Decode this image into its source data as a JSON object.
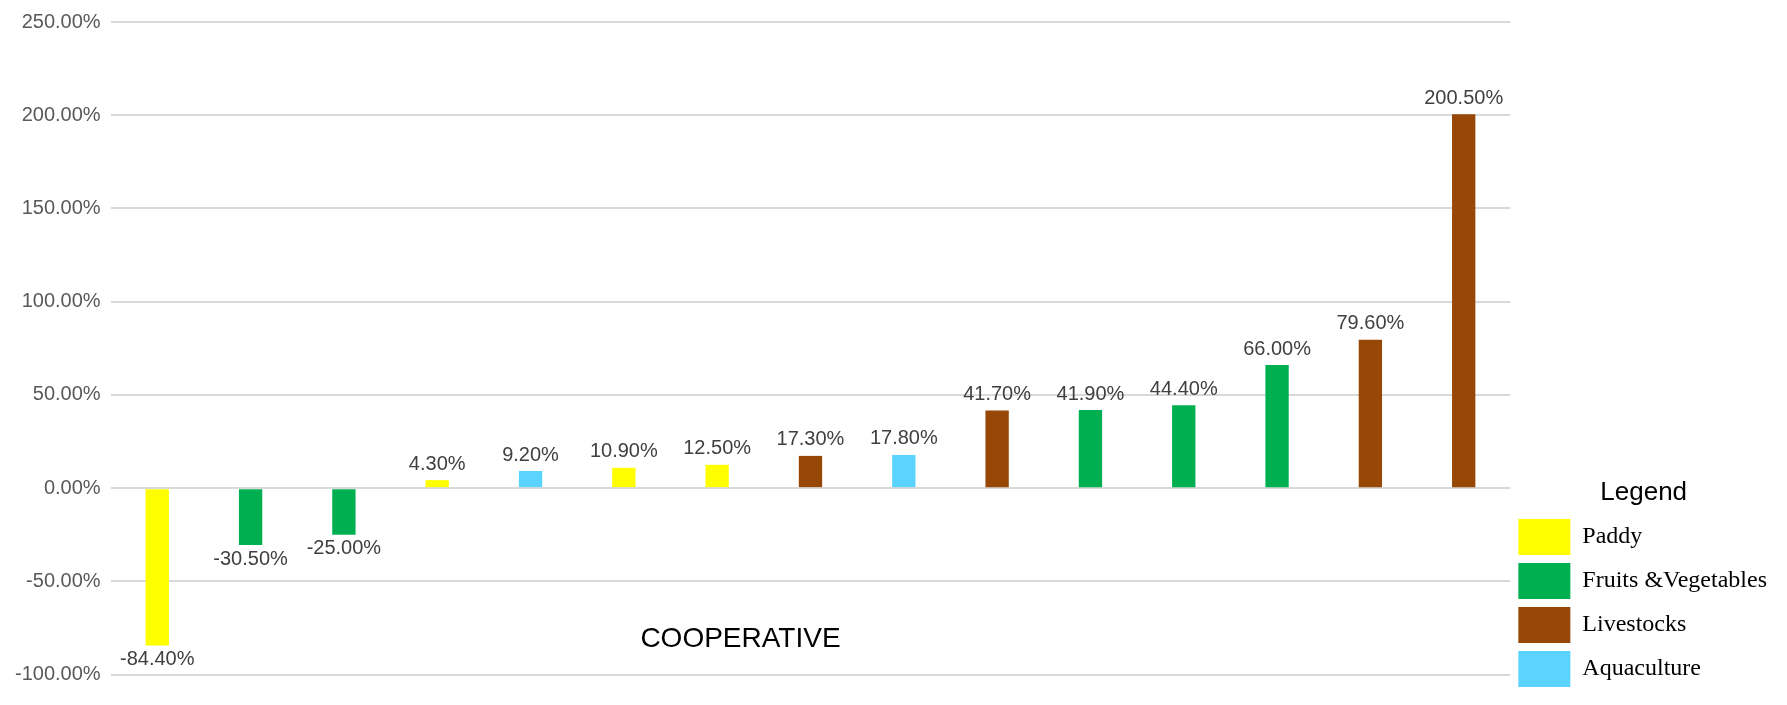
{
  "chart_data": {
    "type": "bar",
    "categories": [
      null,
      null,
      null,
      null,
      null,
      null,
      null,
      null,
      null,
      null,
      null,
      null,
      null,
      null,
      null
    ],
    "series": [
      {
        "name": "Paddy",
        "color": "#ffff00",
        "values": [
          -84.4,
          null,
          null,
          4.3,
          null,
          10.9,
          12.5,
          null,
          null,
          null,
          null,
          null,
          null,
          null,
          null
        ],
        "value_labels": [
          "-84.40%",
          null,
          null,
          "4.30%",
          null,
          "10.90%",
          "12.50%",
          null,
          null,
          null,
          null,
          null,
          null,
          null,
          null
        ]
      },
      {
        "name": "Fruits &Vegetables",
        "color": "#00b050",
        "values": [
          null,
          -30.5,
          -25,
          null,
          null,
          null,
          null,
          null,
          null,
          null,
          41.9,
          44.4,
          66,
          null,
          null
        ],
        "value_labels": [
          null,
          "-30.50%",
          "-25.00%",
          null,
          null,
          null,
          null,
          null,
          null,
          null,
          "41.90%",
          "44.40%",
          "66.00%",
          null,
          null
        ]
      },
      {
        "name": "Livestocks",
        "color": "#974706",
        "values": [
          null,
          null,
          null,
          null,
          null,
          null,
          null,
          17.3,
          null,
          41.7,
          null,
          null,
          null,
          79.6,
          200.5
        ],
        "value_labels": [
          null,
          null,
          null,
          null,
          null,
          null,
          null,
          "17.30%",
          null,
          "41.70%",
          null,
          null,
          null,
          "79.60%",
          "200.50%"
        ]
      },
      {
        "name": "Aquaculture",
        "color": "#5bd3ff",
        "values": [
          null,
          null,
          null,
          null,
          9.2,
          null,
          null,
          null,
          17.8,
          null,
          null,
          null,
          null,
          null,
          null
        ],
        "value_labels": [
          null,
          null,
          null,
          null,
          "9.20%",
          null,
          null,
          null,
          "17.80%",
          null,
          null,
          null,
          null,
          null,
          null
        ]
      }
    ],
    "ylim": [
      -100,
      250
    ],
    "yticks": [
      {
        "value": -100,
        "label": "-100.00%"
      },
      {
        "value": -50,
        "label": "-50.00%"
      },
      {
        "value": 0,
        "label": "0.00%"
      },
      {
        "value": 50,
        "label": "50.00%"
      },
      {
        "value": 100,
        "label": "100.00%"
      },
      {
        "value": 150,
        "label": "150.00%"
      },
      {
        "value": 200,
        "label": "200.00%"
      },
      {
        "value": 250,
        "label": "250.00%"
      }
    ],
    "grid": "y",
    "legend": "bottom right",
    "legend_title": "Legend",
    "annotations": [
      "COOPERATIVE"
    ]
  }
}
